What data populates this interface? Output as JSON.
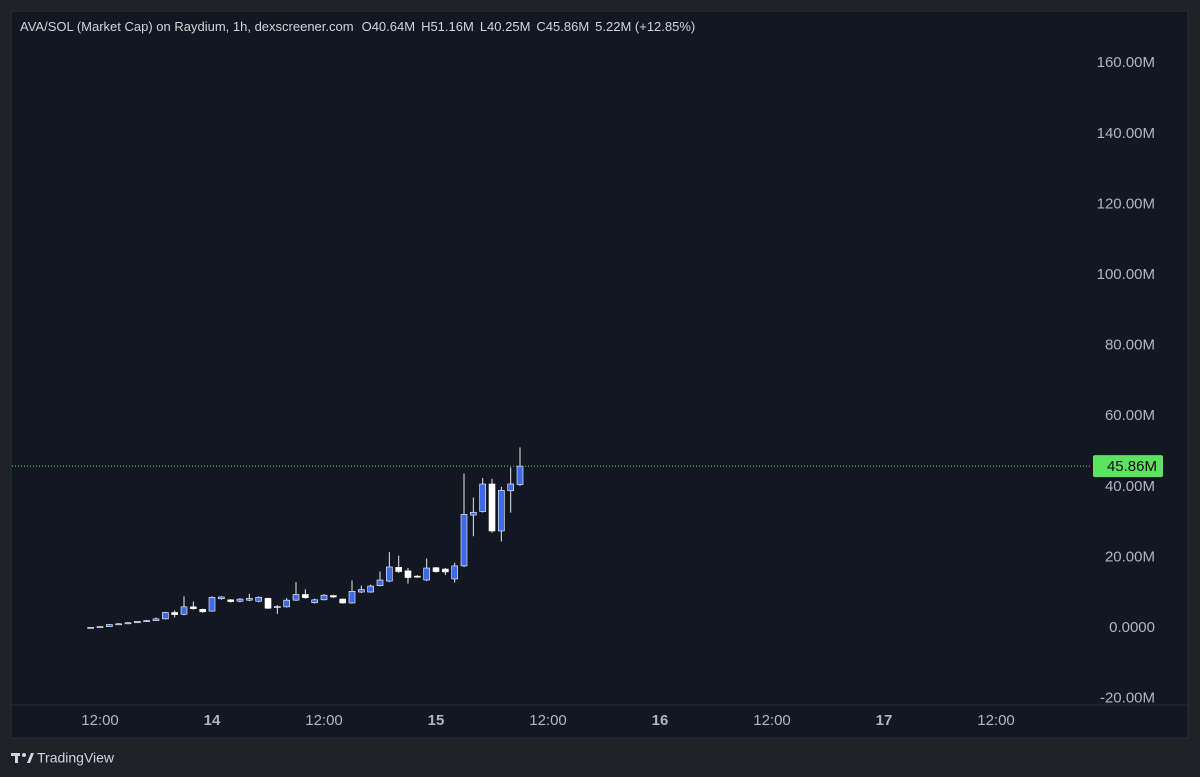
{
  "chart_data": {
    "type": "candlestick",
    "legend": {
      "title": "AVA/SOL (Market Cap) on Raydium, 1h, dexscreener.com",
      "open": "O40.64M",
      "high": "H51.16M",
      "low": "L40.25M",
      "close": "C45.86M",
      "change": "5.22M (+12.85%)"
    },
    "x": [
      11,
      12,
      13,
      14,
      15,
      16,
      17,
      18,
      19,
      20,
      21,
      22,
      23,
      24,
      25,
      26,
      27,
      28,
      29,
      30,
      31,
      32,
      33,
      34,
      35,
      36,
      37,
      38,
      39,
      40,
      41,
      42,
      43,
      44,
      45,
      46,
      47,
      48,
      49,
      50,
      51,
      52,
      53,
      54,
      55,
      56,
      57
    ],
    "open": [
      0.1,
      0.2,
      0.4,
      1.0,
      1.2,
      1.5,
      1.9,
      2.1,
      2.6,
      4.4,
      3.9,
      6.0,
      5.3,
      4.8,
      8.3,
      8.0,
      7.6,
      7.9,
      7.6,
      8.4,
      5.8,
      6.0,
      7.9,
      9.5,
      7.2,
      8.0,
      9.2,
      8.2,
      7.1,
      10.2,
      10.2,
      12.0,
      13.3,
      17.2,
      16.2,
      14.7,
      13.6,
      17.1,
      16.7,
      13.9,
      17.6,
      32.0,
      33.0,
      40.8,
      27.5,
      38.9,
      40.64
    ],
    "high": [
      0.3,
      0.5,
      1.1,
      1.4,
      1.7,
      2.0,
      2.3,
      3.0,
      4.6,
      5.0,
      9.0,
      7.5,
      5.5,
      9.0,
      9.0,
      8.2,
      8.5,
      9.7,
      9.0,
      8.6,
      6.5,
      8.5,
      13.0,
      11.0,
      8.3,
      9.6,
      9.4,
      8.4,
      13.5,
      12.0,
      12.3,
      16.0,
      21.5,
      20.5,
      17.0,
      15.0,
      19.7,
      17.3,
      17.0,
      18.5,
      43.8,
      37.0,
      42.5,
      42.3,
      40.0,
      45.5,
      51.16
    ],
    "low": [
      0.05,
      0.15,
      0.3,
      0.9,
      1.1,
      1.4,
      1.8,
      2.0,
      2.4,
      3.0,
      3.6,
      5.2,
      4.3,
      4.6,
      8.0,
      7.2,
      7.3,
      7.6,
      7.3,
      5.4,
      4.0,
      5.8,
      7.7,
      8.3,
      6.9,
      7.8,
      8.5,
      6.9,
      6.9,
      9.9,
      10.0,
      11.8,
      13.0,
      15.6,
      12.6,
      14.2,
      13.3,
      15.7,
      15.0,
      12.9,
      17.3,
      26.0,
      32.7,
      27.0,
      24.5,
      32.7,
      40.25
    ],
    "close": [
      0.2,
      0.4,
      1.0,
      1.2,
      1.5,
      1.9,
      2.1,
      2.6,
      4.4,
      3.8,
      6.0,
      5.5,
      4.6,
      8.7,
      8.8,
      7.5,
      8.2,
      8.4,
      8.7,
      5.6,
      6.1,
      7.9,
      9.5,
      8.6,
      8.0,
      9.3,
      8.8,
      7.1,
      10.4,
      10.9,
      11.9,
      13.6,
      17.3,
      16.0,
      14.3,
      14.5,
      17.0,
      16.0,
      15.9,
      17.6,
      32.2,
      32.8,
      40.8,
      27.5,
      39.0,
      40.8,
      45.86
    ],
    "up_color": "#3f6ae6",
    "down_color": "#ffffff",
    "wick_color": "#e8e8ea",
    "last_price": {
      "value": 45.86,
      "label": "45.86M",
      "color": "#5ce35f"
    },
    "xlim": [
      2.57,
      118.07
    ],
    "xticks": [
      {
        "value": 12,
        "label": "12:00"
      },
      {
        "value": 24,
        "label": "14"
      },
      {
        "value": 36,
        "label": "12:00"
      },
      {
        "value": 48,
        "label": "15"
      },
      {
        "value": 60,
        "label": "12:00"
      },
      {
        "value": 72,
        "label": "16"
      },
      {
        "value": 84,
        "label": "12:00"
      },
      {
        "value": 96,
        "label": "17"
      },
      {
        "value": 108,
        "label": "12:00"
      }
    ],
    "ylim": [
      -21.8,
      174.5
    ],
    "yticks": [
      {
        "value": -20,
        "label": "-20.00M"
      },
      {
        "value": 0,
        "label": "0.0000"
      },
      {
        "value": 20,
        "label": "20.00M"
      },
      {
        "value": 40,
        "label": "40.00M"
      },
      {
        "value": 60,
        "label": "60.00M"
      },
      {
        "value": 80,
        "label": "80.00M"
      },
      {
        "value": 100,
        "label": "100.00M"
      },
      {
        "value": 120,
        "label": "120.00M"
      },
      {
        "value": 140,
        "label": "140.00M"
      },
      {
        "value": 160,
        "label": "160.00M"
      }
    ],
    "brand": "TradingView"
  }
}
